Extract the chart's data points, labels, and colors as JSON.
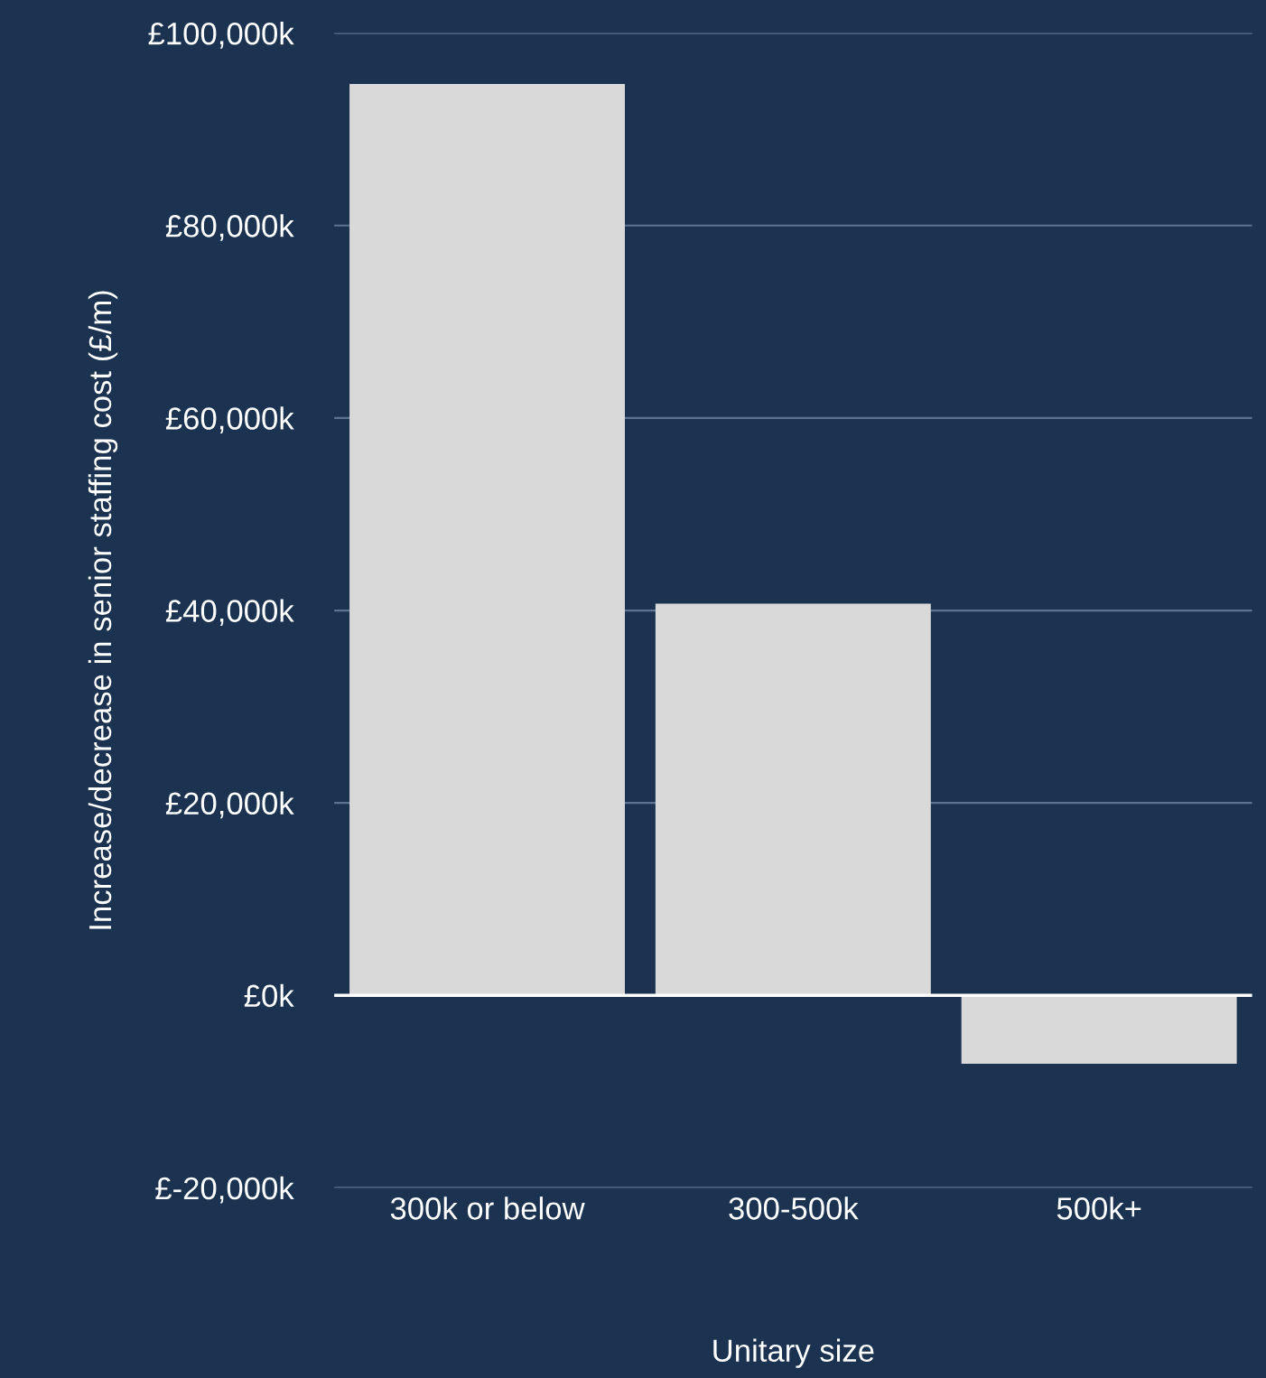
{
  "chart_data": {
    "type": "bar",
    "categories": [
      "300k or below",
      "300-500k",
      "500k+"
    ],
    "values": [
      94700,
      40700,
      -7100
    ],
    "color": "#d9d9d9",
    "xlabel": "Unitary size",
    "ylabel": "Increase/decrease in senior staffing cost (£/m)",
    "ylim": [
      -20000,
      100000
    ],
    "yticks": [
      {
        "value": -20000,
        "label": "£-20,000k"
      },
      {
        "value": 0,
        "label": "£0k"
      },
      {
        "value": 20000,
        "label": "£20,000k"
      },
      {
        "value": 40000,
        "label": "£40,000k"
      },
      {
        "value": 60000,
        "label": "£60,000k"
      },
      {
        "value": 80000,
        "label": "£80,000k"
      },
      {
        "value": 100000,
        "label": "£100,000k"
      }
    ],
    "grid": "y",
    "ref_lines": [
      {
        "axis": "y",
        "value": 0,
        "color": "#ffffff"
      }
    ]
  }
}
